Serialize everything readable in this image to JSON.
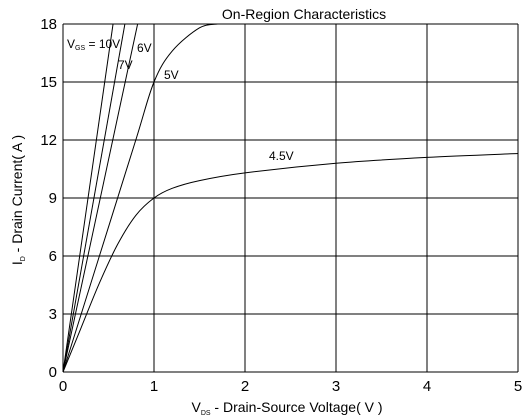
{
  "chart_data": {
    "type": "line",
    "title": "On-Region Characteristics",
    "xlabel": {
      "main": "V",
      "sub": "DS",
      "rest": " - Drain-Source Voltage( V )"
    },
    "ylabel": {
      "main": "I",
      "sub": "D",
      "rest": " - Drain Current( A )"
    },
    "xlim": [
      0,
      5
    ],
    "ylim": [
      0,
      18
    ],
    "xticks": [
      "0",
      "1",
      "2",
      "3",
      "4",
      "5"
    ],
    "yticks": [
      "0",
      "3",
      "6",
      "9",
      "12",
      "15",
      "18"
    ],
    "grid": true,
    "series": [
      {
        "name": "10V",
        "points": [
          [
            0,
            0
          ],
          [
            0.55,
            18
          ]
        ]
      },
      {
        "name": "7V",
        "points": [
          [
            0,
            0
          ],
          [
            0.68,
            18
          ]
        ]
      },
      {
        "name": "6V",
        "points": [
          [
            0,
            0
          ],
          [
            0.82,
            18
          ]
        ]
      },
      {
        "name": "5V",
        "points": [
          [
            0,
            0
          ],
          [
            0.4,
            6
          ],
          [
            0.8,
            12
          ],
          [
            1.0,
            15
          ],
          [
            1.2,
            16.6
          ],
          [
            1.5,
            17.8
          ],
          [
            1.7,
            18
          ]
        ]
      },
      {
        "name": "4.5V",
        "points": [
          [
            0,
            0
          ],
          [
            0.2,
            2.3
          ],
          [
            0.4,
            4.6
          ],
          [
            0.6,
            6.6
          ],
          [
            0.8,
            8.1
          ],
          [
            1.0,
            9.0
          ],
          [
            1.2,
            9.5
          ],
          [
            1.5,
            9.9
          ],
          [
            2.0,
            10.3
          ],
          [
            3.0,
            10.8
          ],
          [
            4.0,
            11.1
          ],
          [
            5.0,
            11.3
          ]
        ]
      }
    ],
    "curve_labels": {
      "vgs_prefix_main": "V",
      "vgs_prefix_sub": "GS",
      "vgs_prefix_rest": " = 10V",
      "l7": "7V",
      "l6": "6V",
      "l5": "5V",
      "l45": "4.5V"
    }
  }
}
